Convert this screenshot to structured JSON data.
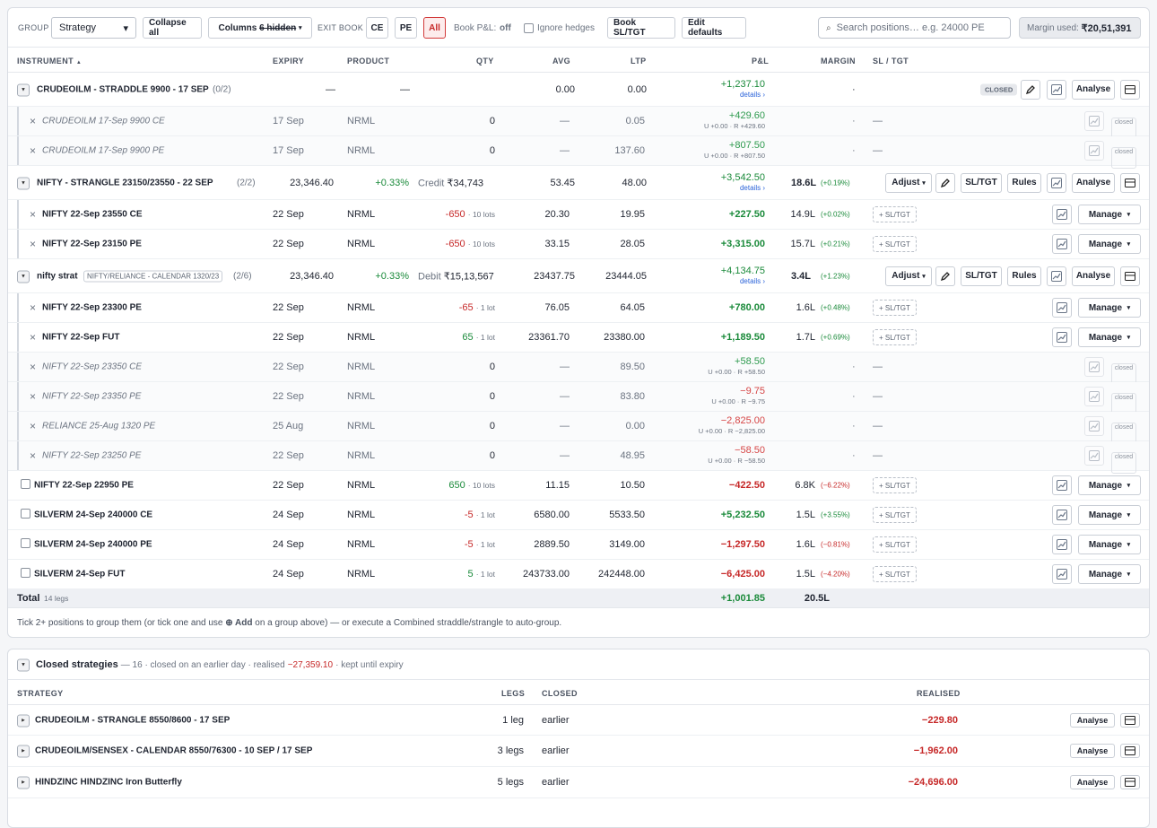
{
  "toolbar": {
    "group_label": "GROUP",
    "group_value": "Strategy",
    "collapse_all": "Collapse all",
    "columns_prefix": "Columns",
    "columns_hidden": "6 hidden",
    "exit_book": "EXIT BOOK",
    "ce": "CE",
    "pe": "PE",
    "all": "All",
    "book_pnl": "Book P&L:",
    "book_pnl_value": "off",
    "ignore_hedges": "Ignore hedges",
    "book_sltgt": "Book SL/TGT",
    "edit_defaults": "Edit defaults",
    "search_placeholder": "Search positions… e.g. 24000 PE",
    "margin_label": "Margin used:",
    "margin_value": "₹20,51,391"
  },
  "headers": {
    "instrument": "INSTRUMENT",
    "expiry": "EXPIRY",
    "product": "PRODUCT",
    "qty": "QTY",
    "avg": "AVG",
    "ltp": "LTP",
    "pnl": "P&L",
    "margin": "MARGIN",
    "sltgt": "SL / TGT"
  },
  "labels": {
    "details": "details ›",
    "closed": "CLOSED",
    "closed_small": "closed",
    "adjust": "Adjust",
    "sltgt": "SL/TGT",
    "rules": "Rules",
    "analyse": "Analyse",
    "manage": "Manage",
    "add_sltgt": "+ SL/TGT",
    "credit": "Credit",
    "debit": "Debit"
  },
  "groups": [
    {
      "name": "CRUDEOILM - STRADDLE 9900 - 17 SEP",
      "count": "(0/2)",
      "c1": "—",
      "c2": "—",
      "avg": "0.00",
      "ltp": "0.00",
      "pnl": "+1,237.10",
      "margin": "·"
    },
    {
      "name": "NIFTY - STRANGLE 23150/23550 - 22 SEP",
      "count": "(2/2)",
      "spot": "23,346.40",
      "chg": "+0.33%",
      "cash": "₹34,743",
      "avg": "53.45",
      "ltp": "48.00",
      "pnl": "+3,542.50",
      "margin": "18.6L",
      "mpct": "(+0.19%)"
    },
    {
      "name": "nifty strat",
      "tag": "NIFTY/RELIANCE - CALENDAR 1320/23",
      "count": "(2/6)",
      "spot": "23,346.40",
      "chg": "+0.33%",
      "cash": "₹15,13,567",
      "avg": "23437.75",
      "ltp": "23444.05",
      "pnl": "+4,134.75",
      "margin": "3.4L",
      "mpct": "(+1.23%)"
    }
  ],
  "legs": [
    {
      "name": "CRUDEOILM 17-Sep 9900 CE",
      "expiry": "17 Sep",
      "product": "NRML",
      "qty": "0",
      "avg": "—",
      "ltp": "0.05",
      "pnl": "+429.60",
      "sub": "U +0.00 · R +429.60",
      "margin": "·",
      "sl": "—"
    },
    {
      "name": "CRUDEOILM 17-Sep 9900 PE",
      "expiry": "17 Sep",
      "product": "NRML",
      "qty": "0",
      "avg": "—",
      "ltp": "137.60",
      "pnl": "+807.50",
      "sub": "U +0.00 · R +807.50",
      "margin": "·",
      "sl": "—"
    },
    {
      "name": "NIFTY 22-Sep 23550 CE",
      "expiry": "22 Sep",
      "product": "NRML",
      "qty": "-650",
      "lots": "· 10 lots",
      "avg": "20.30",
      "ltp": "19.95",
      "pnl": "+227.50",
      "margin": "14.9L",
      "mpct": "(+0.02%)"
    },
    {
      "name": "NIFTY 22-Sep 23150 PE",
      "expiry": "22 Sep",
      "product": "NRML",
      "qty": "-650",
      "lots": "· 10 lots",
      "avg": "33.15",
      "ltp": "28.05",
      "pnl": "+3,315.00",
      "margin": "15.7L",
      "mpct": "(+0.21%)"
    },
    {
      "name": "NIFTY 22-Sep 23300 PE",
      "expiry": "22 Sep",
      "product": "NRML",
      "qty": "-65",
      "lots": "· 1 lot",
      "avg": "76.05",
      "ltp": "64.05",
      "pnl": "+780.00",
      "margin": "1.6L",
      "mpct": "(+0.48%)"
    },
    {
      "name": "NIFTY 22-Sep FUT",
      "expiry": "22 Sep",
      "product": "NRML",
      "qty": "65",
      "lots": "· 1 lot",
      "avg": "23361.70",
      "ltp": "23380.00",
      "pnl": "+1,189.50",
      "margin": "1.7L",
      "mpct": "(+0.69%)"
    },
    {
      "name": "NIFTY 22-Sep 23350 CE",
      "expiry": "22 Sep",
      "product": "NRML",
      "qty": "0",
      "avg": "—",
      "ltp": "89.50",
      "pnl": "+58.50",
      "sub": "U +0.00 · R +58.50",
      "margin": "·",
      "sl": "—"
    },
    {
      "name": "NIFTY 22-Sep 23350 PE",
      "expiry": "22 Sep",
      "product": "NRML",
      "qty": "0",
      "avg": "—",
      "ltp": "83.80",
      "pnl": "−9.75",
      "sub": "U +0.00 · R −9.75",
      "margin": "·",
      "sl": "—"
    },
    {
      "name": "RELIANCE 25-Aug 1320 PE",
      "expiry": "25 Aug",
      "product": "NRML",
      "qty": "0",
      "avg": "—",
      "ltp": "0.00",
      "pnl": "−2,825.00",
      "sub": "U +0.00 · R −2,825.00",
      "margin": "·",
      "sl": "—"
    },
    {
      "name": "NIFTY 22-Sep 23250 PE",
      "expiry": "22 Sep",
      "product": "NRML",
      "qty": "0",
      "avg": "—",
      "ltp": "48.95",
      "pnl": "−58.50",
      "sub": "U +0.00 · R −58.50",
      "margin": "·",
      "sl": "—"
    },
    {
      "name": "NIFTY 22-Sep 22950 PE",
      "expiry": "22 Sep",
      "product": "NRML",
      "qty": "650",
      "lots": "· 10 lots",
      "avg": "11.15",
      "ltp": "10.50",
      "pnl": "−422.50",
      "margin": "6.8K",
      "mpct": "(−6.22%)"
    },
    {
      "name": "SILVERM 24-Sep 240000 CE",
      "expiry": "24 Sep",
      "product": "NRML",
      "qty": "-5",
      "lots": "· 1 lot",
      "avg": "6580.00",
      "ltp": "5533.50",
      "pnl": "+5,232.50",
      "margin": "1.5L",
      "mpct": "(+3.55%)"
    },
    {
      "name": "SILVERM 24-Sep 240000 PE",
      "expiry": "24 Sep",
      "product": "NRML",
      "qty": "-5",
      "lots": "· 1 lot",
      "avg": "2889.50",
      "ltp": "3149.00",
      "pnl": "−1,297.50",
      "margin": "1.6L",
      "mpct": "(−0.81%)"
    },
    {
      "name": "SILVERM 24-Sep FUT",
      "expiry": "24 Sep",
      "product": "NRML",
      "qty": "5",
      "lots": "· 1 lot",
      "avg": "243733.00",
      "ltp": "242448.00",
      "pnl": "−6,425.00",
      "margin": "1.5L",
      "mpct": "(−4.20%)"
    }
  ],
  "total": {
    "label": "Total",
    "legs": "14 legs",
    "pnl": "+1,001.85",
    "margin": "20.5L"
  },
  "footer": {
    "pre": "Tick 2+ positions to group them (or tick one and use",
    "add": "⊕ Add",
    "post": "on a group above) — or execute a Combined straddle/strangle to auto-group."
  },
  "closed_section": {
    "title": "Closed strategies",
    "meta1": "— 16 · closed on an earlier day · realised",
    "realised": "−27,359.10",
    "meta2": "· kept until expiry",
    "h_strategy": "STRATEGY",
    "h_legs": "LEGS",
    "h_closed": "CLOSED",
    "h_realised": "REALISED",
    "rows": [
      {
        "name": "CRUDEOILM - STRANGLE 8550/8600 - 17 SEP",
        "legs": "1 leg",
        "closed": "earlier",
        "realised": "−229.80"
      },
      {
        "name": "CRUDEOILM/SENSEX - CALENDAR 8550/76300 - 10 SEP / 17 SEP",
        "legs": "3 legs",
        "closed": "earlier",
        "realised": "−1,962.00"
      },
      {
        "name": "HINDZINC HINDZINC Iron Butterfly",
        "legs": "5 legs",
        "closed": "earlier",
        "realised": "−24,696.00"
      }
    ]
  }
}
